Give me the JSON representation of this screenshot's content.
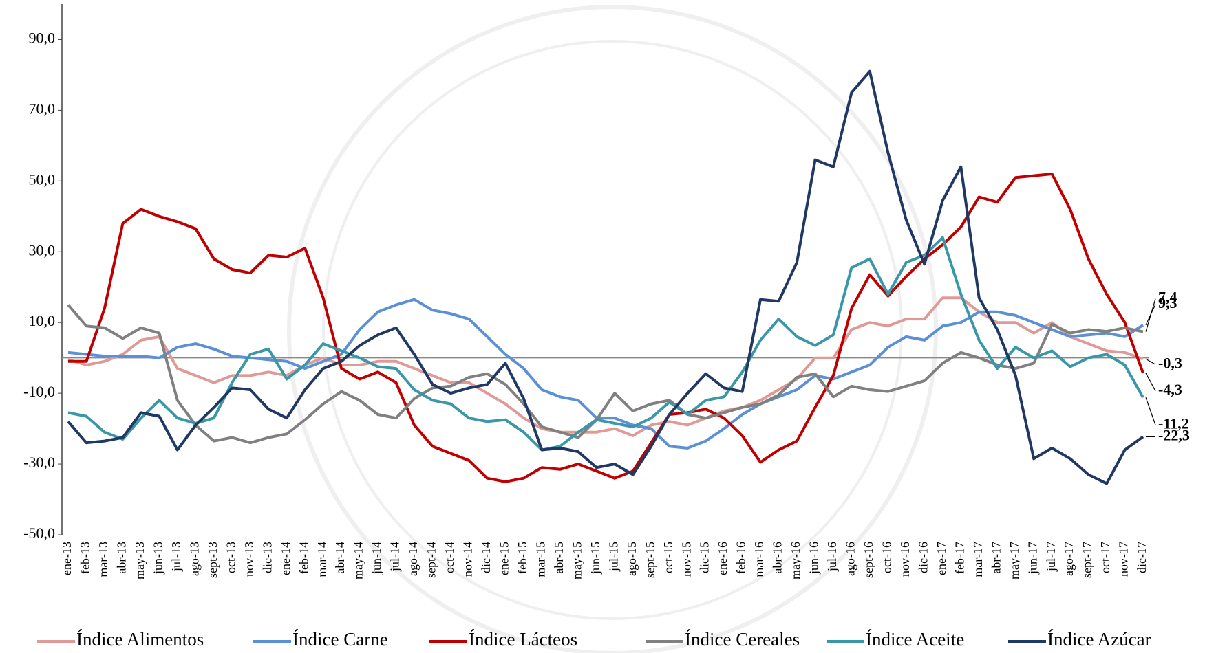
{
  "chart_data": {
    "type": "line",
    "categories": [
      "ene-13",
      "feb-13",
      "mar-13",
      "abr-13",
      "may-13",
      "jun-13",
      "jul-13",
      "ago-13",
      "sept-13",
      "oct-13",
      "nov-13",
      "dic-13",
      "ene-14",
      "feb-14",
      "mar-14",
      "abr-14",
      "may-14",
      "jun-14",
      "jul-14",
      "ago-14",
      "sept-14",
      "oct-14",
      "nov-14",
      "dic-14",
      "ene-15",
      "feb-15",
      "mar-15",
      "abr-15",
      "may-15",
      "jun-15",
      "jul-15",
      "ago-15",
      "sept-15",
      "oct-15",
      "nov-15",
      "dic-15",
      "ene-16",
      "feb-16",
      "mar-16",
      "abr-16",
      "may-16",
      "jun-16",
      "jul-16",
      "ago-16",
      "sept-16",
      "oct-16",
      "nov-16",
      "dic-16",
      "ene-17",
      "feb-17",
      "mar-17",
      "abr-17",
      "may-17",
      "jun-17",
      "jul-17",
      "ago-17",
      "sept-17",
      "oct-17",
      "nov-17",
      "dic-17"
    ],
    "series": [
      {
        "name": "Índice Alimentos",
        "color": "#e09a96",
        "values": [
          -0.5,
          -2,
          -1,
          1,
          5,
          6,
          -3,
          -5,
          -7,
          -5,
          -5,
          -4,
          -5,
          -2,
          0,
          -2,
          -2,
          -1,
          -1,
          -3,
          -5,
          -7,
          -7,
          -10,
          -13,
          -17,
          -20,
          -21,
          -21,
          -21,
          -20,
          -22,
          -19,
          -18,
          -19,
          -17,
          -15,
          -14,
          -12,
          -9,
          -6,
          0,
          0,
          8,
          10,
          9,
          11,
          11,
          17,
          17,
          13,
          10,
          10,
          7,
          10,
          6,
          4,
          2,
          1.5,
          -0.3
        ],
        "value_labels": [
          null,
          null,
          null,
          null,
          null,
          null,
          null,
          null,
          null,
          null,
          null,
          null,
          null,
          null,
          null,
          null,
          null,
          null,
          null,
          null,
          null,
          null,
          null,
          null,
          null,
          null,
          null,
          null,
          null,
          null,
          null,
          null,
          null,
          null,
          null,
          null,
          null,
          null,
          null,
          null,
          null,
          null,
          null,
          null,
          null,
          null,
          null,
          null,
          null,
          null,
          null,
          null,
          null,
          null,
          null,
          null,
          null,
          null,
          null,
          "-0,3"
        ]
      },
      {
        "name": "Índice Carne",
        "color": "#5b8fd6",
        "values": [
          1.5,
          1,
          0.5,
          0.5,
          0.5,
          0,
          3,
          4,
          2.5,
          0.5,
          0,
          -0.5,
          -1,
          -3,
          -1,
          1,
          8,
          13,
          15,
          16.5,
          13.5,
          12.5,
          11,
          6,
          1,
          -3,
          -9,
          -11,
          -12,
          -17,
          -17,
          -19,
          -20,
          -25,
          -25.5,
          -23.5,
          -20,
          -16,
          -13,
          -11,
          -9,
          -5,
          -6,
          -4,
          -2,
          3,
          6,
          5,
          9,
          10,
          13,
          13,
          12,
          10,
          8,
          6,
          6.5,
          7,
          6,
          9.3
        ],
        "value_labels": [
          null,
          null,
          null,
          null,
          null,
          null,
          null,
          null,
          null,
          null,
          null,
          null,
          null,
          null,
          null,
          null,
          null,
          null,
          null,
          null,
          null,
          null,
          null,
          null,
          null,
          null,
          null,
          null,
          null,
          null,
          null,
          null,
          null,
          null,
          null,
          null,
          null,
          null,
          null,
          null,
          null,
          null,
          null,
          null,
          null,
          null,
          null,
          null,
          null,
          null,
          null,
          null,
          null,
          null,
          null,
          null,
          null,
          null,
          null,
          "9,3"
        ]
      },
      {
        "name": "Índice Lácteos",
        "color": "#c00000",
        "values": [
          -1,
          -1,
          14,
          38,
          42,
          40,
          38.5,
          36.5,
          28,
          25,
          24,
          29,
          28.5,
          31,
          17,
          -3,
          -6,
          -4,
          -7,
          -19,
          -25,
          -27,
          -29,
          -34,
          -35,
          -34,
          -31,
          -31.5,
          -30,
          -32,
          -34,
          -32,
          -24,
          -16,
          -15.5,
          -14.5,
          -17,
          -22,
          -29.5,
          -26,
          -23.5,
          -14,
          -5,
          14,
          23.5,
          17.5,
          23,
          28,
          32,
          37,
          45.5,
          44,
          51,
          51.5,
          52,
          42,
          28,
          18,
          10,
          -4.3
        ],
        "value_labels": [
          null,
          null,
          null,
          null,
          null,
          null,
          null,
          null,
          null,
          null,
          null,
          null,
          null,
          null,
          null,
          null,
          null,
          null,
          null,
          null,
          null,
          null,
          null,
          null,
          null,
          null,
          null,
          null,
          null,
          null,
          null,
          null,
          null,
          null,
          null,
          null,
          null,
          null,
          null,
          null,
          null,
          null,
          null,
          null,
          null,
          null,
          null,
          null,
          null,
          null,
          null,
          null,
          null,
          null,
          null,
          null,
          null,
          null,
          null,
          "-4,3"
        ]
      },
      {
        "name": "Índice Cereales",
        "color": "#808080",
        "values": [
          15,
          9,
          8.5,
          5.5,
          8.5,
          7,
          -12,
          -19,
          -23.5,
          -22.5,
          -24,
          -22.5,
          -21.5,
          -17.5,
          -13,
          -9.5,
          -12,
          -16,
          -17,
          -11.5,
          -8.5,
          -8,
          -5.5,
          -4.5,
          -7.5,
          -13,
          -19.5,
          -21,
          -22.5,
          -17.5,
          -10,
          -15,
          -13,
          -12,
          -16,
          -17,
          -15.5,
          -14,
          -13,
          -10.5,
          -5.5,
          -4.5,
          -11,
          -8,
          -9,
          -9.5,
          -8,
          -6.5,
          -1.5,
          1.5,
          0,
          -2,
          -3,
          -1.5,
          9.5,
          7,
          8,
          7.5,
          8.5,
          7.4
        ],
        "value_labels": [
          null,
          null,
          null,
          null,
          null,
          null,
          null,
          null,
          null,
          null,
          null,
          null,
          null,
          null,
          null,
          null,
          null,
          null,
          null,
          null,
          null,
          null,
          null,
          null,
          null,
          null,
          null,
          null,
          null,
          null,
          null,
          null,
          null,
          null,
          null,
          null,
          null,
          null,
          null,
          null,
          null,
          null,
          null,
          null,
          null,
          null,
          null,
          null,
          null,
          null,
          null,
          null,
          null,
          null,
          null,
          null,
          null,
          null,
          null,
          "7,4"
        ]
      },
      {
        "name": "Índice Aceite",
        "color": "#3a97a8",
        "values": [
          -15.5,
          -16.5,
          -21,
          -23,
          -17,
          -12,
          -17,
          -18.5,
          -17,
          -7,
          1,
          2.5,
          -6,
          -2,
          4,
          2,
          0,
          -2.5,
          -3,
          -9,
          -12,
          -13,
          -17,
          -18,
          -17.5,
          -21,
          -26,
          -25,
          -21,
          -17.5,
          -18.5,
          -19.5,
          -17,
          -12.5,
          -16,
          -12,
          -11,
          -4,
          5,
          11,
          6,
          3.5,
          6.5,
          25.5,
          28,
          18,
          27,
          29,
          34,
          18,
          5,
          -3,
          3,
          0,
          2,
          -2.5,
          0,
          1,
          -2,
          -11.2
        ],
        "value_labels": [
          null,
          null,
          null,
          null,
          null,
          null,
          null,
          null,
          null,
          null,
          null,
          null,
          null,
          null,
          null,
          null,
          null,
          null,
          null,
          null,
          null,
          null,
          null,
          null,
          null,
          null,
          null,
          null,
          null,
          null,
          null,
          null,
          null,
          null,
          null,
          null,
          null,
          null,
          null,
          null,
          null,
          null,
          null,
          null,
          null,
          null,
          null,
          null,
          null,
          null,
          null,
          null,
          null,
          null,
          null,
          null,
          null,
          null,
          null,
          "-11,2"
        ]
      },
      {
        "name": "Índice Azúcar",
        "color": "#1f3864",
        "values": [
          -18,
          -24,
          -23.5,
          -22.5,
          -15.5,
          -16.5,
          -26,
          -19,
          -14,
          -8.5,
          -9,
          -14.5,
          -17,
          -9,
          -3,
          -1,
          3.5,
          6.5,
          8.5,
          1,
          -7.5,
          -10,
          -8.5,
          -7.5,
          -1.5,
          -11.5,
          -26,
          -25.5,
          -26.5,
          -31,
          -30,
          -33,
          -25,
          -16,
          -10,
          -4.5,
          -8.5,
          -9.5,
          16.5,
          16,
          27,
          56,
          54,
          75,
          81,
          58,
          39,
          26.5,
          44.5,
          54,
          17,
          8,
          -5,
          -28.5,
          -25.5,
          -28.5,
          -33,
          -35.5,
          -26,
          -22.3
        ],
        "value_labels": [
          null,
          null,
          null,
          null,
          null,
          null,
          null,
          null,
          null,
          null,
          null,
          null,
          null,
          null,
          null,
          null,
          null,
          null,
          null,
          null,
          null,
          null,
          null,
          null,
          null,
          null,
          null,
          null,
          null,
          null,
          null,
          null,
          null,
          null,
          null,
          null,
          null,
          null,
          null,
          null,
          null,
          null,
          null,
          null,
          null,
          null,
          null,
          null,
          null,
          null,
          null,
          null,
          null,
          null,
          null,
          null,
          null,
          null,
          null,
          "-22,3"
        ]
      }
    ],
    "ylim": [
      -50,
      100
    ],
    "yticks": [
      {
        "value": -50,
        "label": "-50,0"
      },
      {
        "value": -30,
        "label": "-30,0"
      },
      {
        "value": -10,
        "label": "-10,0"
      },
      {
        "value": 10,
        "label": "10,0"
      },
      {
        "value": 30,
        "label": "30,0"
      },
      {
        "value": 50,
        "label": "50,0"
      },
      {
        "value": 70,
        "label": "70,0"
      },
      {
        "value": 90,
        "label": "90,0"
      }
    ],
    "legend": "bottom"
  }
}
